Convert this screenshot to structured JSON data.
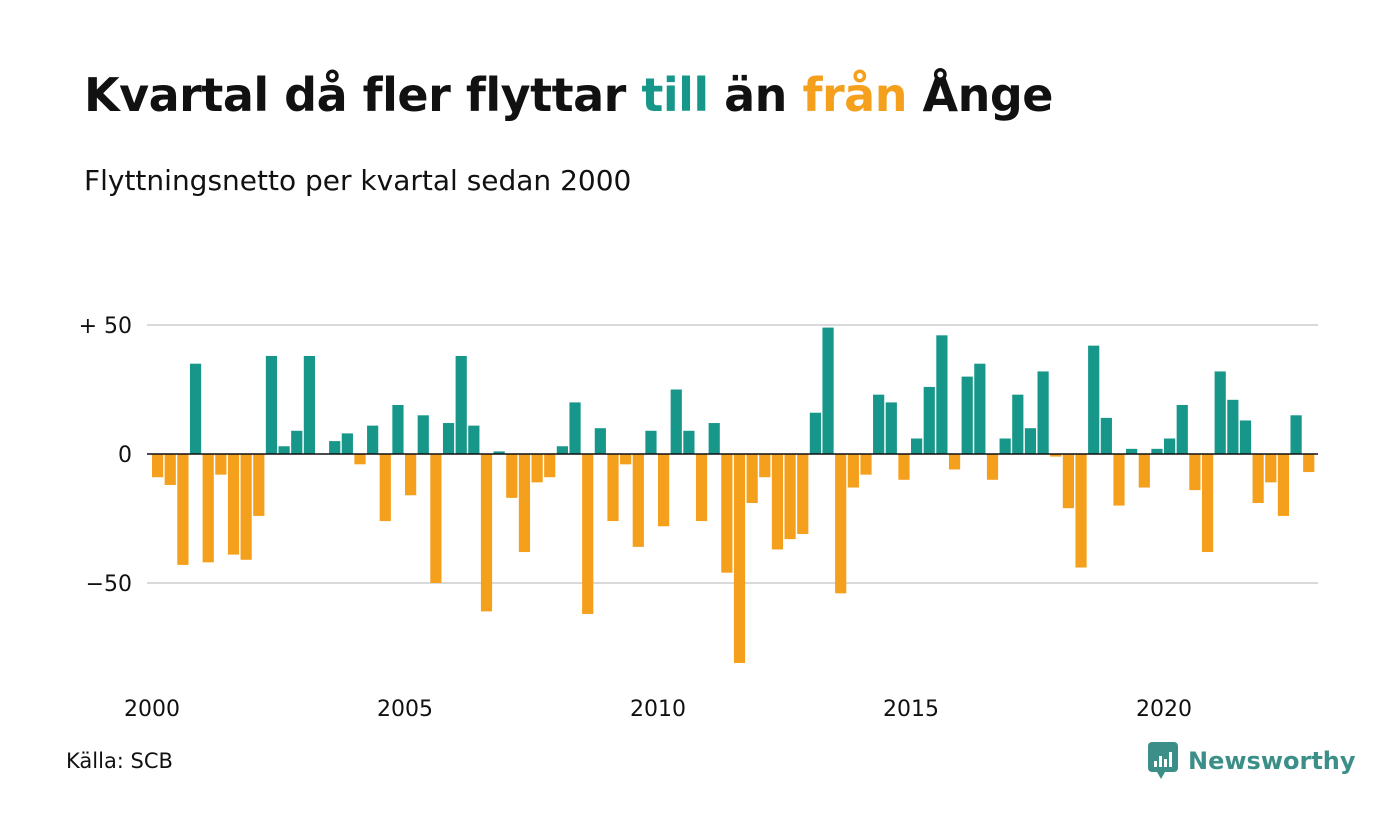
{
  "header": {
    "title_part1": "Kvartal då fler flyttar ",
    "title_pos": "till",
    "title_part2": " än ",
    "title_neg": "från",
    "title_part3": " Ånge",
    "subtitle": "Flyttningsnetto per kvartal sedan 2000"
  },
  "colors": {
    "positive": "#16978a",
    "negative": "#f5a01d",
    "grid": "#d9d9d9",
    "zero": "#111111",
    "brand": "#3c8f89"
  },
  "footer": {
    "source": "Källa: SCB",
    "brand_name": "Newsworthy",
    "brand_icon": "newsworthy-logo-icon"
  },
  "chart_data": {
    "type": "bar",
    "title": "Kvartal då fler flyttar till än från Ånge",
    "subtitle": "Flyttningsnetto per kvartal sedan 2000",
    "xlabel": "",
    "ylabel": "",
    "start_year": 2000,
    "x_ticks": [
      "2000",
      "2005",
      "2010",
      "2015",
      "2020"
    ],
    "y_ticks": [
      {
        "value": 50,
        "label": "+ 50"
      },
      {
        "value": 0,
        "label": "0"
      },
      {
        "value": -50,
        "label": "−50"
      }
    ],
    "ylim": [
      -85,
      50
    ],
    "grid": true,
    "values": [
      -9,
      -12,
      -43,
      35,
      -42,
      -8,
      -39,
      -41,
      -24,
      38,
      3,
      9,
      38,
      0,
      5,
      8,
      -4,
      11,
      -26,
      19,
      -16,
      15,
      -50,
      12,
      38,
      11,
      -61,
      1,
      -17,
      -38,
      -11,
      -9,
      3,
      20,
      -62,
      10,
      -26,
      -4,
      -36,
      9,
      -28,
      25,
      9,
      -26,
      12,
      -46,
      -81,
      -19,
      -9,
      -37,
      -33,
      -31,
      16,
      49,
      -54,
      -13,
      -8,
      23,
      20,
      -10,
      6,
      26,
      46,
      -6,
      30,
      35,
      -10,
      6,
      23,
      10,
      32,
      -1,
      -21,
      -44,
      42,
      14,
      -20,
      2,
      -13,
      2,
      6,
      19,
      -14,
      -38,
      32,
      21,
      13,
      -19,
      -11,
      -24,
      15,
      -7
    ]
  }
}
